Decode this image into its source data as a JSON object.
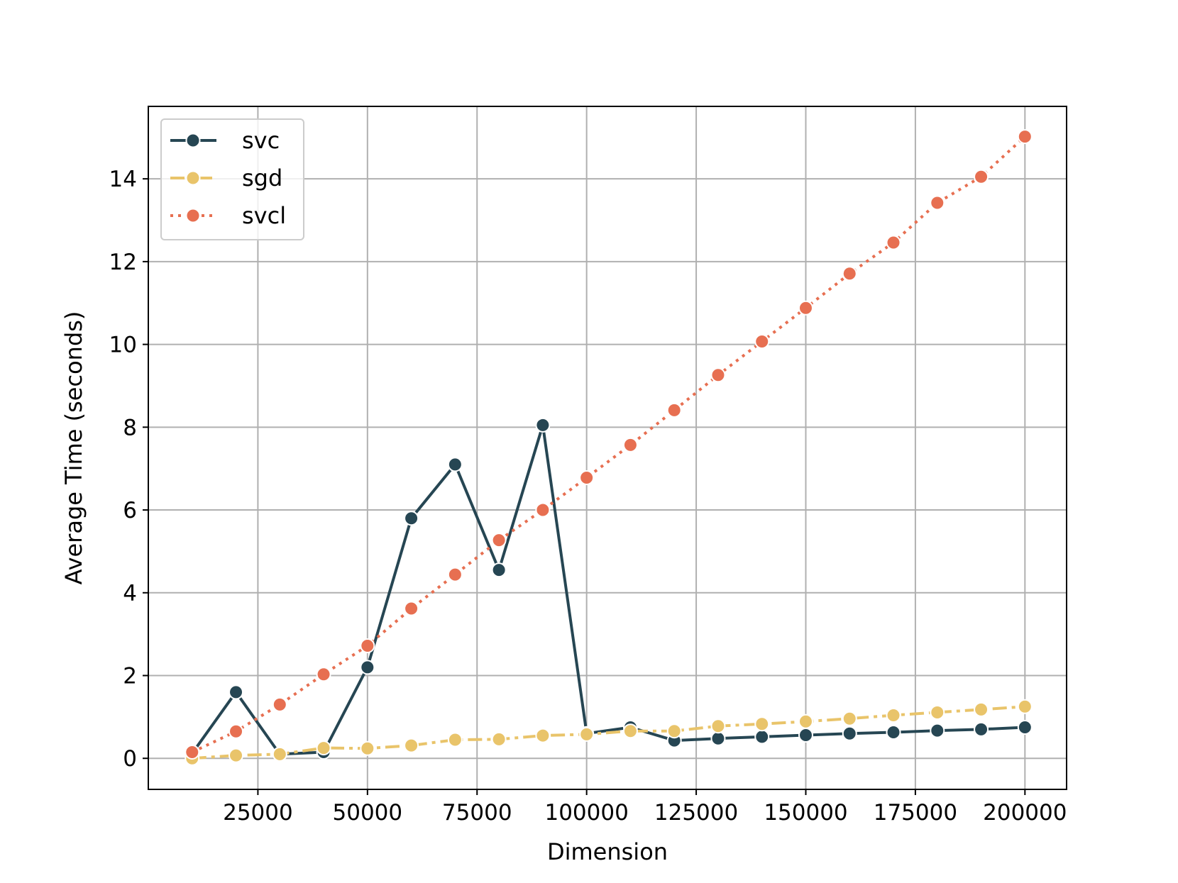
{
  "chart_data": {
    "type": "line",
    "title": "",
    "xlabel": "Dimension",
    "ylabel": "Average Time (seconds)",
    "xlim": [
      0,
      209500
    ],
    "ylim": [
      -0.75,
      15.75
    ],
    "xticks": [
      25000,
      50000,
      75000,
      100000,
      125000,
      150000,
      175000,
      200000
    ],
    "xtick_labels": [
      "25000",
      "50000",
      "75000",
      "100000",
      "125000",
      "150000",
      "175000",
      "200000"
    ],
    "yticks": [
      0,
      2,
      4,
      6,
      8,
      10,
      12,
      14
    ],
    "ytick_labels": [
      "0",
      "2",
      "4",
      "6",
      "8",
      "10",
      "12",
      "14"
    ],
    "grid": true,
    "legend_position": "top-left",
    "x": [
      10000,
      20000,
      30000,
      40000,
      50000,
      60000,
      70000,
      80000,
      90000,
      100000,
      110000,
      120000,
      130000,
      140000,
      150000,
      160000,
      170000,
      180000,
      190000,
      200000
    ],
    "series": [
      {
        "name": "svc",
        "color": "#264653",
        "line_style": "solid",
        "values": [
          0.12,
          1.6,
          0.1,
          0.15,
          2.2,
          5.8,
          7.1,
          4.55,
          8.05,
          0.6,
          0.75,
          0.43,
          0.48,
          0.52,
          0.56,
          0.6,
          0.63,
          0.67,
          0.7,
          0.75
        ]
      },
      {
        "name": "sgd",
        "color": "#E9C46A",
        "line_style": "dashdot",
        "values": [
          0.0,
          0.07,
          0.1,
          0.25,
          0.24,
          0.31,
          0.45,
          0.46,
          0.55,
          0.58,
          0.66,
          0.66,
          0.78,
          0.83,
          0.89,
          0.96,
          1.04,
          1.11,
          1.18,
          1.25
        ]
      },
      {
        "name": "svcl",
        "color": "#E76F51",
        "line_style": "dotted",
        "values": [
          0.15,
          0.65,
          1.3,
          2.03,
          2.72,
          3.62,
          4.44,
          5.27,
          6.0,
          6.78,
          7.57,
          8.41,
          9.26,
          10.07,
          10.88,
          11.71,
          12.46,
          13.42,
          14.05,
          15.02
        ]
      }
    ]
  }
}
